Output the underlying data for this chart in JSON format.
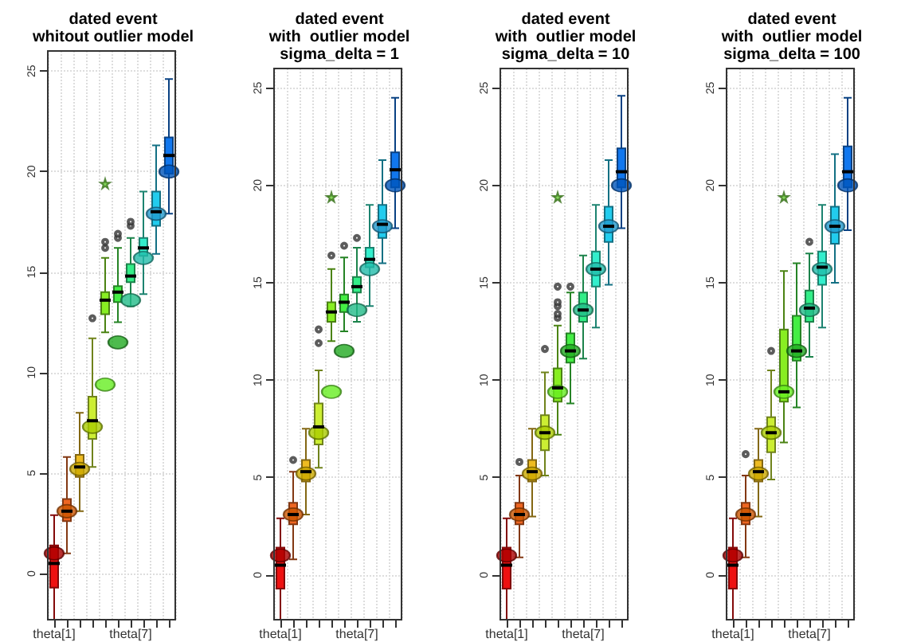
{
  "chart_data": [
    {
      "type": "box",
      "title": "dated event\nwhitout outlier model",
      "categories": [
        "theta[1]",
        null,
        null,
        null,
        null,
        null,
        "theta[7]",
        null,
        null,
        null
      ],
      "ylim": [
        -2.3,
        26
      ],
      "yticks": [
        0,
        5,
        10,
        15,
        20,
        25
      ],
      "grid": true,
      "series": [
        {
          "type": "box",
          "colors": [
            "#ee1111",
            "#ee6622",
            "#eebb22",
            "#ccee33",
            "#88ee22",
            "#44ee44",
            "#33ee88",
            "#33eecc",
            "#22ccee",
            "#1177ee"
          ],
          "boxes": [
            {
              "low": -2.3,
              "q1": -0.7,
              "median": 0.5,
              "q3": 1.4,
              "high": 2.9
            },
            {
              "low": 1.0,
              "q1": 2.6,
              "median": 3.1,
              "q3": 3.7,
              "high": 5.8
            },
            {
              "low": 3.1,
              "q1": 4.8,
              "median": 5.3,
              "q3": 5.9,
              "high": 8.0
            },
            {
              "low": 5.3,
              "q1": 6.7,
              "median": 7.6,
              "q3": 8.8,
              "high": 11.7,
              "outliers": [
                12.7
              ]
            },
            {
              "low": 12.0,
              "q1": 12.9,
              "median": 13.6,
              "q3": 14.0,
              "high": 15.7,
              "outliers": [
                16.2,
                16.5
              ]
            },
            {
              "low": 12.5,
              "q1": 13.5,
              "median": 14.0,
              "q3": 14.3,
              "high": 16.2,
              "outliers": [
                16.7,
                16.9
              ]
            },
            {
              "low": 13.3,
              "q1": 14.5,
              "median": 14.8,
              "q3": 15.4,
              "high": 16.7,
              "outliers": [
                17.3,
                17.5
              ]
            },
            {
              "low": 13.9,
              "q1": 15.8,
              "median": 16.2,
              "q3": 16.7,
              "high": 19.0
            },
            {
              "low": 15.9,
              "q1": 17.3,
              "median": 18.0,
              "q3": 19.0,
              "high": 21.3
            },
            {
              "low": 17.9,
              "q1": 19.9,
              "median": 20.8,
              "q3": 21.7,
              "high": 24.6
            }
          ]
        },
        {
          "type": "scatter",
          "marker": "circle",
          "colors": [
            "#aa0000",
            "#cc5500",
            "#ccaa00",
            "#aacc00",
            "#66ee22",
            "#22aa22",
            "#22bb88",
            "#22bbaa",
            "#2299cc",
            "#0055bb"
          ],
          "values": [
            1.0,
            3.1,
            5.2,
            7.3,
            9.4,
            11.5,
            13.6,
            15.7,
            17.9,
            20.0
          ]
        },
        {
          "type": "scatter",
          "marker": "star",
          "color": "#66cc33",
          "values": [
            null,
            null,
            null,
            null,
            19.4,
            null,
            null,
            null,
            null,
            null
          ]
        }
      ]
    },
    {
      "type": "box",
      "title": "dated event\nwith  outlier model\nsigma_delta = 1",
      "categories": [
        "theta[1]",
        null,
        null,
        null,
        null,
        null,
        "theta[7]",
        null,
        null,
        null
      ],
      "ylim": [
        -2.3,
        26
      ],
      "yticks": [
        0,
        5,
        10,
        15,
        20,
        25
      ],
      "grid": true,
      "series": [
        {
          "type": "box",
          "colors": [
            "#ee1111",
            "#ee6622",
            "#eebb22",
            "#ccee33",
            "#88ee22",
            "#44ee44",
            "#33ee88",
            "#33eecc",
            "#22ccee",
            "#1177ee"
          ],
          "boxes": [
            {
              "low": -2.3,
              "q1": -0.7,
              "median": 0.5,
              "q3": 1.4,
              "high": 2.9
            },
            {
              "low": 0.8,
              "q1": 2.6,
              "median": 3.1,
              "q3": 3.7,
              "high": 5.3,
              "outliers": [
                5.9
              ]
            },
            {
              "low": 3.1,
              "q1": 4.8,
              "median": 5.3,
              "q3": 5.9,
              "high": 7.5
            },
            {
              "low": 5.5,
              "q1": 6.7,
              "median": 7.6,
              "q3": 8.8,
              "high": 10.5,
              "outliers": [
                11.9,
                12.6
              ]
            },
            {
              "low": 12.0,
              "q1": 13.0,
              "median": 13.5,
              "q3": 14.0,
              "high": 15.7,
              "outliers": [
                16.4
              ]
            },
            {
              "low": 12.5,
              "q1": 13.5,
              "median": 14.0,
              "q3": 14.4,
              "high": 16.3,
              "outliers": [
                16.9
              ]
            },
            {
              "low": 13.0,
              "q1": 14.5,
              "median": 14.8,
              "q3": 15.3,
              "high": 16.8,
              "outliers": [
                17.3
              ]
            },
            {
              "low": 13.8,
              "q1": 15.8,
              "median": 16.2,
              "q3": 16.8,
              "high": 19.0
            },
            {
              "low": 16.0,
              "q1": 17.3,
              "median": 18.0,
              "q3": 19.0,
              "high": 21.3
            },
            {
              "low": 17.8,
              "q1": 19.9,
              "median": 20.8,
              "q3": 21.7,
              "high": 24.5
            }
          ]
        },
        {
          "type": "scatter",
          "marker": "circle",
          "colors": [
            "#aa0000",
            "#cc5500",
            "#ccaa00",
            "#aacc00",
            "#66ee22",
            "#22aa22",
            "#22bb88",
            "#22bbaa",
            "#2299cc",
            "#0055bb"
          ],
          "values": [
            1.0,
            3.1,
            5.2,
            7.3,
            9.4,
            11.5,
            13.6,
            15.7,
            17.9,
            20.0
          ]
        },
        {
          "type": "scatter",
          "marker": "star",
          "color": "#66cc33",
          "values": [
            null,
            null,
            null,
            null,
            19.4,
            null,
            null,
            null,
            null,
            null
          ]
        }
      ]
    },
    {
      "type": "box",
      "title": "dated event\nwith  outlier model\nsigma_delta = 10",
      "categories": [
        "theta[1]",
        null,
        null,
        null,
        null,
        null,
        "theta[7]",
        null,
        null,
        null
      ],
      "ylim": [
        -2.3,
        26
      ],
      "yticks": [
        0,
        5,
        10,
        15,
        20,
        25
      ],
      "grid": true,
      "series": [
        {
          "type": "box",
          "colors": [
            "#ee1111",
            "#ee6622",
            "#eebb22",
            "#ccee33",
            "#88ee22",
            "#44ee44",
            "#33ee88",
            "#33eecc",
            "#22ccee",
            "#1177ee"
          ],
          "boxes": [
            {
              "low": -2.3,
              "q1": -0.7,
              "median": 0.5,
              "q3": 1.4,
              "high": 2.9
            },
            {
              "low": 0.9,
              "q1": 2.6,
              "median": 3.1,
              "q3": 3.7,
              "high": 5.1,
              "outliers": [
                5.8
              ]
            },
            {
              "low": 3.0,
              "q1": 4.8,
              "median": 5.3,
              "q3": 5.9,
              "high": 7.5
            },
            {
              "low": 5.1,
              "q1": 6.4,
              "median": 7.3,
              "q3": 8.2,
              "high": 10.4,
              "outliers": [
                11.6
              ]
            },
            {
              "low": 7.2,
              "q1": 8.9,
              "median": 9.6,
              "q3": 10.6,
              "high": 12.8,
              "outliers": [
                13.2,
                13.4,
                13.8,
                14.0,
                14.8
              ]
            },
            {
              "low": 8.8,
              "q1": 10.9,
              "median": 11.5,
              "q3": 12.4,
              "high": 14.5,
              "outliers": [
                14.8
              ]
            },
            {
              "low": 11.1,
              "q1": 13.0,
              "median": 13.6,
              "q3": 14.5,
              "high": 16.4
            },
            {
              "low": 12.7,
              "q1": 14.8,
              "median": 15.7,
              "q3": 16.6,
              "high": 19.0
            },
            {
              "low": 14.9,
              "q1": 17.1,
              "median": 17.9,
              "q3": 18.9,
              "high": 21.3
            },
            {
              "low": 17.8,
              "q1": 19.9,
              "median": 20.7,
              "q3": 21.9,
              "high": 24.6
            }
          ]
        },
        {
          "type": "scatter",
          "marker": "circle",
          "colors": [
            "#aa0000",
            "#cc5500",
            "#ccaa00",
            "#aacc00",
            "#66ee22",
            "#22aa22",
            "#22bb88",
            "#22bbaa",
            "#2299cc",
            "#0055bb"
          ],
          "values": [
            1.0,
            3.1,
            5.2,
            7.3,
            9.4,
            11.5,
            13.6,
            15.7,
            17.9,
            20.0
          ]
        },
        {
          "type": "scatter",
          "marker": "star",
          "color": "#66cc33",
          "values": [
            null,
            null,
            null,
            null,
            19.4,
            null,
            null,
            null,
            null,
            null
          ]
        }
      ]
    },
    {
      "type": "box",
      "title": "dated event\nwith  outlier model\nsigma_delta = 100",
      "categories": [
        "theta[1]",
        null,
        null,
        null,
        null,
        null,
        "theta[7]",
        null,
        null,
        null
      ],
      "ylim": [
        -2.3,
        26
      ],
      "yticks": [
        0,
        5,
        10,
        15,
        20,
        25
      ],
      "grid": true,
      "series": [
        {
          "type": "box",
          "colors": [
            "#ee1111",
            "#ee6622",
            "#eebb22",
            "#ccee33",
            "#88ee22",
            "#44ee44",
            "#33ee88",
            "#33eecc",
            "#22ccee",
            "#1177ee"
          ],
          "boxes": [
            {
              "low": -2.3,
              "q1": -0.7,
              "median": 0.5,
              "q3": 1.4,
              "high": 2.9
            },
            {
              "low": 0.9,
              "q1": 2.6,
              "median": 3.1,
              "q3": 3.7,
              "high": 5.1,
              "outliers": [
                6.2
              ]
            },
            {
              "low": 3.0,
              "q1": 4.8,
              "median": 5.3,
              "q3": 5.9,
              "high": 7.5
            },
            {
              "low": 4.9,
              "q1": 6.3,
              "median": 7.3,
              "q3": 8.1,
              "high": 10.5,
              "outliers": [
                11.5
              ]
            },
            {
              "low": 6.8,
              "q1": 8.9,
              "median": 9.4,
              "q3": 12.6,
              "high": 15.6
            },
            {
              "low": 8.6,
              "q1": 11.0,
              "median": 11.5,
              "q3": 13.3,
              "high": 16.0
            },
            {
              "low": 11.2,
              "q1": 13.0,
              "median": 13.7,
              "q3": 14.6,
              "high": 16.5,
              "outliers": [
                17.1
              ]
            },
            {
              "low": 12.7,
              "q1": 14.9,
              "median": 15.8,
              "q3": 16.6,
              "high": 19.0
            },
            {
              "low": 15.0,
              "q1": 17.0,
              "median": 17.9,
              "q3": 18.9,
              "high": 21.6
            },
            {
              "low": 17.7,
              "q1": 19.9,
              "median": 20.7,
              "q3": 22.0,
              "high": 24.5
            }
          ]
        },
        {
          "type": "scatter",
          "marker": "circle",
          "colors": [
            "#aa0000",
            "#cc5500",
            "#ccaa00",
            "#aacc00",
            "#66ee22",
            "#22aa22",
            "#22bb88",
            "#22bbaa",
            "#2299cc",
            "#0055bb"
          ],
          "values": [
            1.0,
            3.1,
            5.2,
            7.3,
            9.4,
            11.5,
            13.6,
            15.7,
            17.9,
            20.0
          ]
        },
        {
          "type": "scatter",
          "marker": "star",
          "color": "#66cc33",
          "values": [
            null,
            null,
            null,
            null,
            19.4,
            null,
            null,
            null,
            null,
            null
          ]
        }
      ]
    }
  ]
}
